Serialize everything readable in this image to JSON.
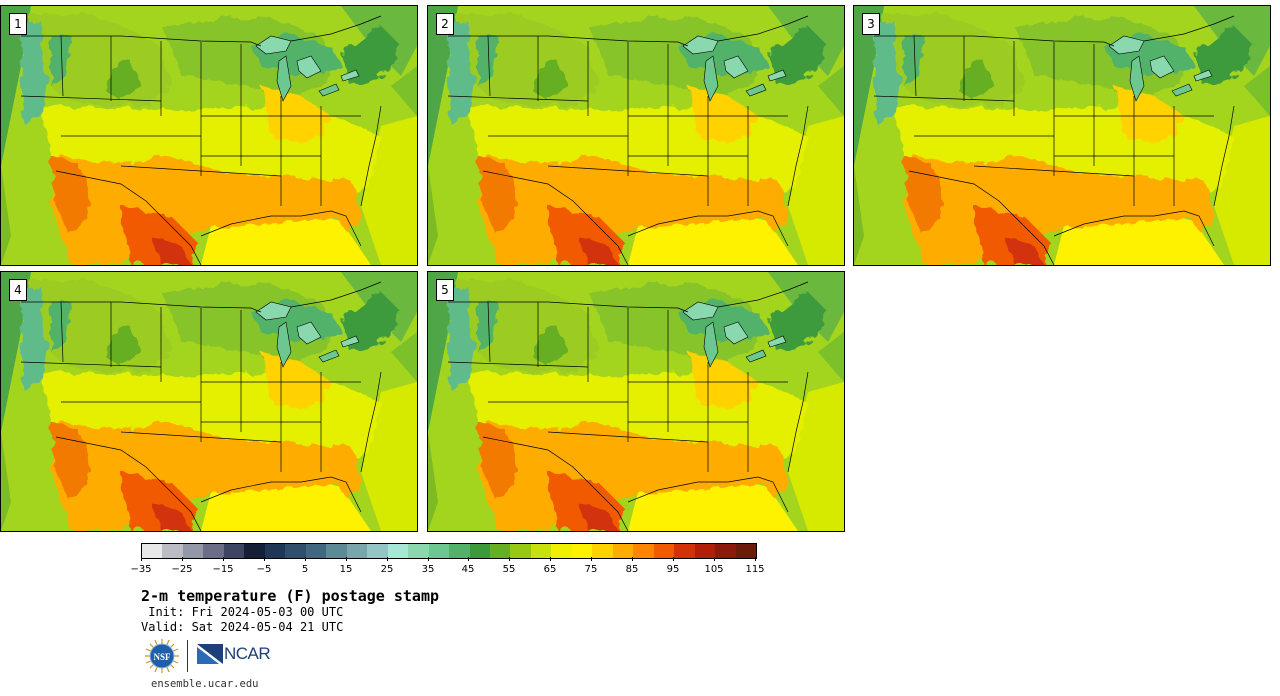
{
  "panels": [
    {
      "label": "1"
    },
    {
      "label": "2"
    },
    {
      "label": "3"
    },
    {
      "label": "4"
    },
    {
      "label": "5"
    }
  ],
  "colorbar": {
    "colors": [
      "#e8e8e8",
      "#bcbcc4",
      "#9497a8",
      "#6a6e86",
      "#3c4663",
      "#152036",
      "#1f3655",
      "#2f4f6c",
      "#41687f",
      "#5e8a96",
      "#7aa6ab",
      "#94c4c4",
      "#a8e6d6",
      "#8ad8ae",
      "#6cc890",
      "#52b26a",
      "#3d9a3c",
      "#66ae22",
      "#96c814",
      "#c8e00c",
      "#eef200",
      "#fff200",
      "#ffd200",
      "#ffac00",
      "#ff8400",
      "#f25a00",
      "#d23208",
      "#b02008",
      "#8c1a0a",
      "#6c1a0a"
    ],
    "tick_labels": [
      "−35",
      "−25",
      "−15",
      "−5",
      "5",
      "15",
      "25",
      "35",
      "45",
      "55",
      "65",
      "75",
      "85",
      "95",
      "105",
      "115"
    ]
  },
  "title": "2-m temperature (F) postage stamp",
  "init": " Init: Fri 2024-05-03 00 UTC",
  "valid": "Valid: Sat 2024-05-04 21 UTC",
  "site": "ensemble.ucar.edu",
  "logos": {
    "nsf_text": "NSF",
    "ncar_text": "NCAR"
  }
}
